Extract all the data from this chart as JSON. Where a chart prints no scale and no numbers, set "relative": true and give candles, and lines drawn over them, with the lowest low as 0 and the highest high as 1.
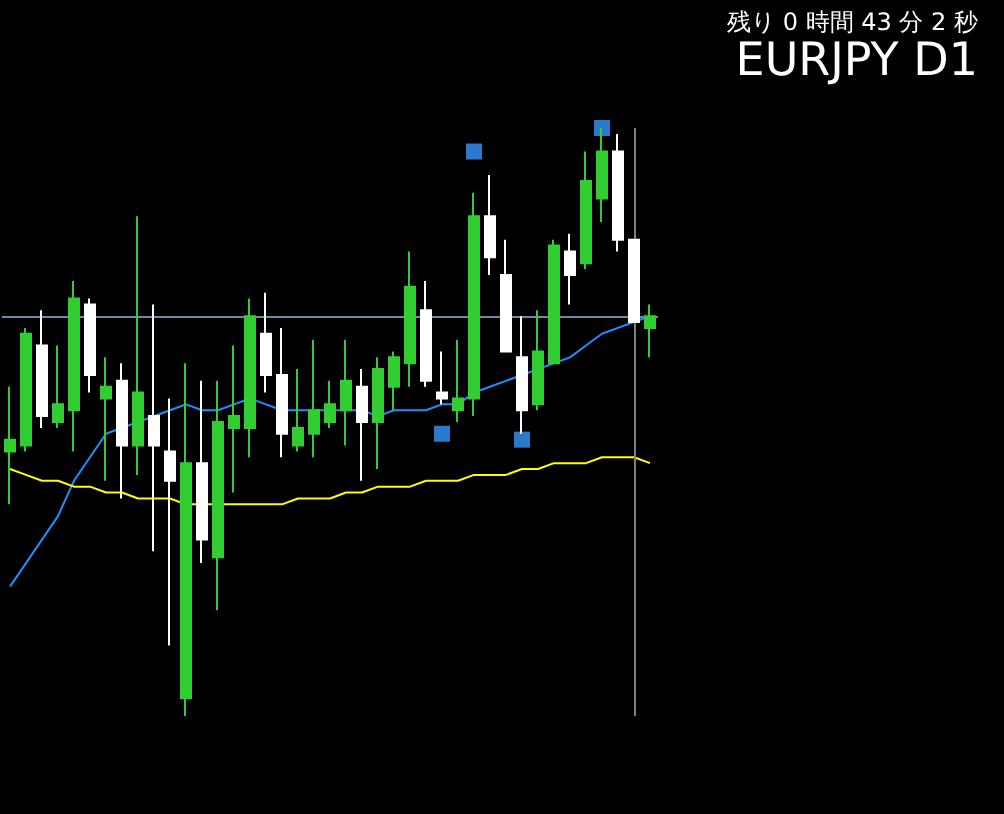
{
  "chart_data": {
    "type": "candlestick",
    "title": "EURJPY D1",
    "annotations": [
      "残り 0 時間 43 分 2 秒"
    ],
    "relative": true,
    "tick_labels": false,
    "categories": [
      null,
      null,
      null,
      null,
      null,
      null,
      null,
      null,
      null,
      null,
      null,
      null,
      null,
      null,
      null,
      null,
      null,
      null,
      null,
      null,
      null,
      null,
      null,
      null,
      null,
      null,
      null,
      null,
      null,
      null,
      null,
      null,
      null,
      null,
      null,
      null,
      null,
      null,
      null,
      null,
      null
    ],
    "ohlc": [
      [
        0.45,
        0.56,
        0.36,
        0.47
      ],
      [
        0.46,
        0.66,
        0.45,
        0.65
      ],
      [
        0.63,
        0.69,
        0.49,
        0.51
      ],
      [
        0.5,
        0.63,
        0.49,
        0.53
      ],
      [
        0.52,
        0.74,
        0.45,
        0.71
      ],
      [
        0.7,
        0.71,
        0.55,
        0.58
      ],
      [
        0.54,
        0.61,
        0.4,
        0.56
      ],
      [
        0.57,
        0.6,
        0.37,
        0.46
      ],
      [
        0.46,
        0.85,
        0.41,
        0.55
      ],
      [
        0.51,
        0.7,
        0.28,
        0.46
      ],
      [
        0.45,
        0.54,
        0.12,
        0.4
      ],
      [
        0.03,
        0.6,
        0.0,
        0.43
      ],
      [
        0.43,
        0.57,
        0.26,
        0.3
      ],
      [
        0.27,
        0.57,
        0.18,
        0.5
      ],
      [
        0.49,
        0.63,
        0.38,
        0.51
      ],
      [
        0.49,
        0.71,
        0.44,
        0.68
      ],
      [
        0.65,
        0.72,
        0.55,
        0.58
      ],
      [
        0.58,
        0.66,
        0.44,
        0.48
      ],
      [
        0.46,
        0.59,
        0.45,
        0.49
      ],
      [
        0.48,
        0.64,
        0.44,
        0.52
      ],
      [
        0.5,
        0.57,
        0.49,
        0.53
      ],
      [
        0.52,
        0.64,
        0.46,
        0.57
      ],
      [
        0.56,
        0.59,
        0.4,
        0.5
      ],
      [
        0.5,
        0.61,
        0.42,
        0.59
      ],
      [
        0.56,
        0.62,
        0.52,
        0.61
      ],
      [
        0.6,
        0.79,
        0.56,
        0.73
      ],
      [
        0.69,
        0.74,
        0.56,
        0.57
      ],
      [
        0.55,
        0.62,
        0.53,
        0.54
      ],
      [
        0.52,
        0.64,
        0.5,
        0.54
      ],
      [
        0.54,
        0.89,
        0.51,
        0.85
      ],
      [
        0.85,
        0.92,
        0.75,
        0.78
      ],
      [
        0.75,
        0.81,
        0.62,
        0.62
      ],
      [
        0.61,
        0.68,
        0.48,
        0.52
      ],
      [
        0.53,
        0.69,
        0.52,
        0.62
      ],
      [
        0.6,
        0.81,
        0.6,
        0.8
      ],
      [
        0.79,
        0.82,
        0.7,
        0.75
      ],
      [
        0.77,
        0.96,
        0.76,
        0.91
      ],
      [
        0.88,
        1.0,
        0.84,
        0.96
      ],
      [
        0.96,
        0.99,
        0.79,
        0.81
      ],
      [
        0.81,
        0.81,
        0.67,
        0.67
      ],
      [
        0.66,
        0.7,
        0.61,
        0.68
      ]
    ],
    "colors": [
      "#32cd32",
      "#32cd32",
      "#ffffff",
      "#32cd32",
      "#32cd32",
      "#ffffff",
      "#32cd32",
      "#ffffff",
      "#32cd32",
      "#ffffff",
      "#ffffff",
      "#32cd32",
      "#ffffff",
      "#32cd32",
      "#32cd32",
      "#32cd32",
      "#ffffff",
      "#ffffff",
      "#32cd32",
      "#32cd32",
      "#32cd32",
      "#32cd32",
      "#ffffff",
      "#32cd32",
      "#32cd32",
      "#32cd32",
      "#ffffff",
      "#ffffff",
      "#32cd32",
      "#32cd32",
      "#ffffff",
      "#ffffff",
      "#ffffff",
      "#32cd32",
      "#32cd32",
      "#ffffff",
      "#32cd32",
      "#32cd32",
      "#ffffff",
      "#ffffff",
      "#32cd32"
    ],
    "series": [
      {
        "type": "line",
        "color": "#1e90ff",
        "values": [
          0.22,
          0.26,
          0.3,
          0.34,
          0.4,
          0.44,
          0.48,
          0.49,
          0.5,
          0.51,
          0.52,
          0.53,
          0.52,
          0.52,
          0.53,
          0.54,
          0.53,
          0.52,
          0.52,
          0.52,
          0.52,
          0.52,
          0.52,
          0.51,
          0.52,
          0.52,
          0.52,
          0.53,
          0.53,
          0.55,
          0.56,
          0.57,
          0.58,
          0.59,
          0.6,
          0.61,
          0.63,
          0.65,
          0.66,
          0.67,
          0.68
        ]
      },
      {
        "type": "line",
        "color": "#ffff00",
        "values": [
          0.42,
          0.41,
          0.4,
          0.4,
          0.39,
          0.39,
          0.38,
          0.38,
          0.37,
          0.37,
          0.37,
          0.36,
          0.36,
          0.36,
          0.36,
          0.36,
          0.36,
          0.36,
          0.37,
          0.37,
          0.37,
          0.38,
          0.38,
          0.39,
          0.39,
          0.39,
          0.4,
          0.4,
          0.4,
          0.41,
          0.41,
          0.41,
          0.42,
          0.42,
          0.43,
          0.43,
          0.43,
          0.44,
          0.44,
          0.44,
          0.43
        ]
      },
      {
        "type": "scatter",
        "color": "#3399ff",
        "marker": "square",
        "values": [
          null,
          null,
          null,
          null,
          null,
          null,
          null,
          null,
          null,
          null,
          null,
          null,
          null,
          null,
          null,
          null,
          null,
          null,
          null,
          null,
          null,
          null,
          null,
          null,
          null,
          null,
          null,
          0.48,
          null,
          0.96,
          null,
          null,
          0.47,
          null,
          null,
          null,
          null,
          1.0,
          null,
          null,
          null
        ]
      }
    ],
    "ref_lines": [
      {
        "axis": "y",
        "value": 0.68,
        "color": "#6a88a8"
      }
    ]
  }
}
